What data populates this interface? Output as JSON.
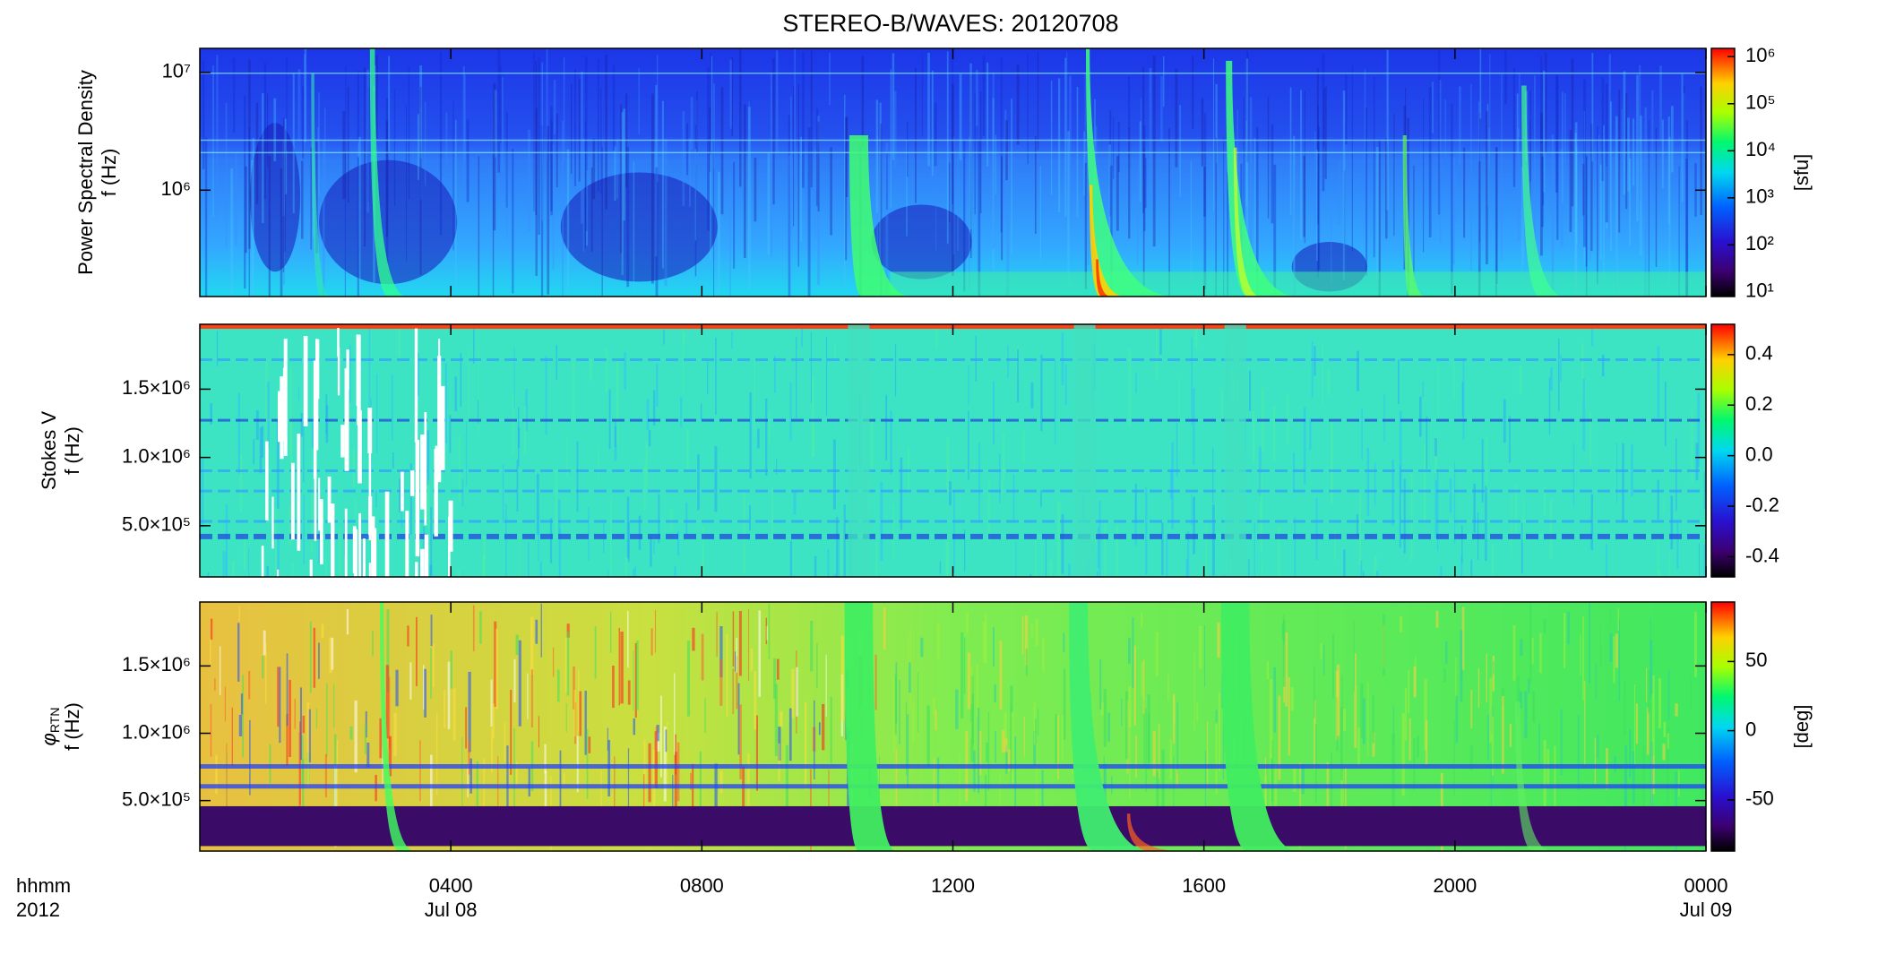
{
  "chart_data": [
    {
      "type": "spectrogram",
      "title": "STEREO-B/WAVES: 20120708",
      "ylabel": [
        "Power Spectral Density",
        "f (Hz)"
      ],
      "ylog": true,
      "ylim": [
        125000,
        16000000
      ],
      "yticks": [
        {
          "value": 1000000,
          "label": "10⁶"
        },
        {
          "value": 10000000,
          "label": "10⁷"
        }
      ],
      "xlim": [
        0,
        24
      ],
      "xticks": [
        4,
        8,
        12,
        16,
        20,
        24
      ],
      "colormap": "rainbow",
      "clog": true,
      "clim": [
        8,
        1500000
      ],
      "cticks": [
        {
          "value": 10,
          "label": "10¹"
        },
        {
          "value": 100,
          "label": "10²"
        },
        {
          "value": 1000,
          "label": "10³"
        },
        {
          "value": 10000,
          "label": "10⁴"
        },
        {
          "value": 100000,
          "label": "10⁵"
        },
        {
          "value": 1000000,
          "label": "10⁶"
        }
      ],
      "clabel": "[sfu]"
    },
    {
      "type": "spectrogram",
      "ylabel": [
        "Stokes V",
        "f (Hz)"
      ],
      "ylim": [
        125000,
        1975000
      ],
      "yticks": [
        {
          "value": 500000,
          "label": "5.0×10⁵"
        },
        {
          "value": 1000000,
          "label": "1.0×10⁶"
        },
        {
          "value": 1500000,
          "label": "1.5×10⁶"
        }
      ],
      "xlim": [
        0,
        24
      ],
      "xticks": [
        4,
        8,
        12,
        16,
        20,
        24
      ],
      "colormap": "rainbow",
      "clim": [
        -0.48,
        0.52
      ],
      "cticks": [
        -0.4,
        -0.2,
        {
          "value": 0,
          "label": "0.0"
        },
        0.2,
        0.4
      ]
    },
    {
      "type": "spectrogram",
      "ylabel": [
        "φ",
        "f (Hz)"
      ],
      "ylabel_subscript": "RTN",
      "ylim": [
        125000,
        1975000
      ],
      "yticks": [
        {
          "value": 500000,
          "label": "5.0×10⁵"
        },
        {
          "value": 1000000,
          "label": "1.0×10⁶"
        },
        {
          "value": 1500000,
          "label": "1.5×10⁶"
        }
      ],
      "xlim": [
        0,
        24
      ],
      "xticks": [
        {
          "value": 4,
          "label": "0400"
        },
        {
          "value": 8,
          "label": "0800"
        },
        {
          "value": 12,
          "label": "1200"
        },
        {
          "value": 16,
          "label": "1600"
        },
        {
          "value": 20,
          "label": "2000"
        },
        {
          "value": 24,
          "label": "0000"
        }
      ],
      "xlabel": [
        "hhmm",
        "2012"
      ],
      "date_labels": [
        {
          "value": 4,
          "label": "Jul 08"
        },
        {
          "value": 24,
          "label": "Jul 09"
        }
      ],
      "colormap": "rainbow",
      "clim": [
        -87,
        93
      ],
      "cticks": [
        -50,
        0,
        50
      ],
      "clabel": "[deg]"
    }
  ]
}
